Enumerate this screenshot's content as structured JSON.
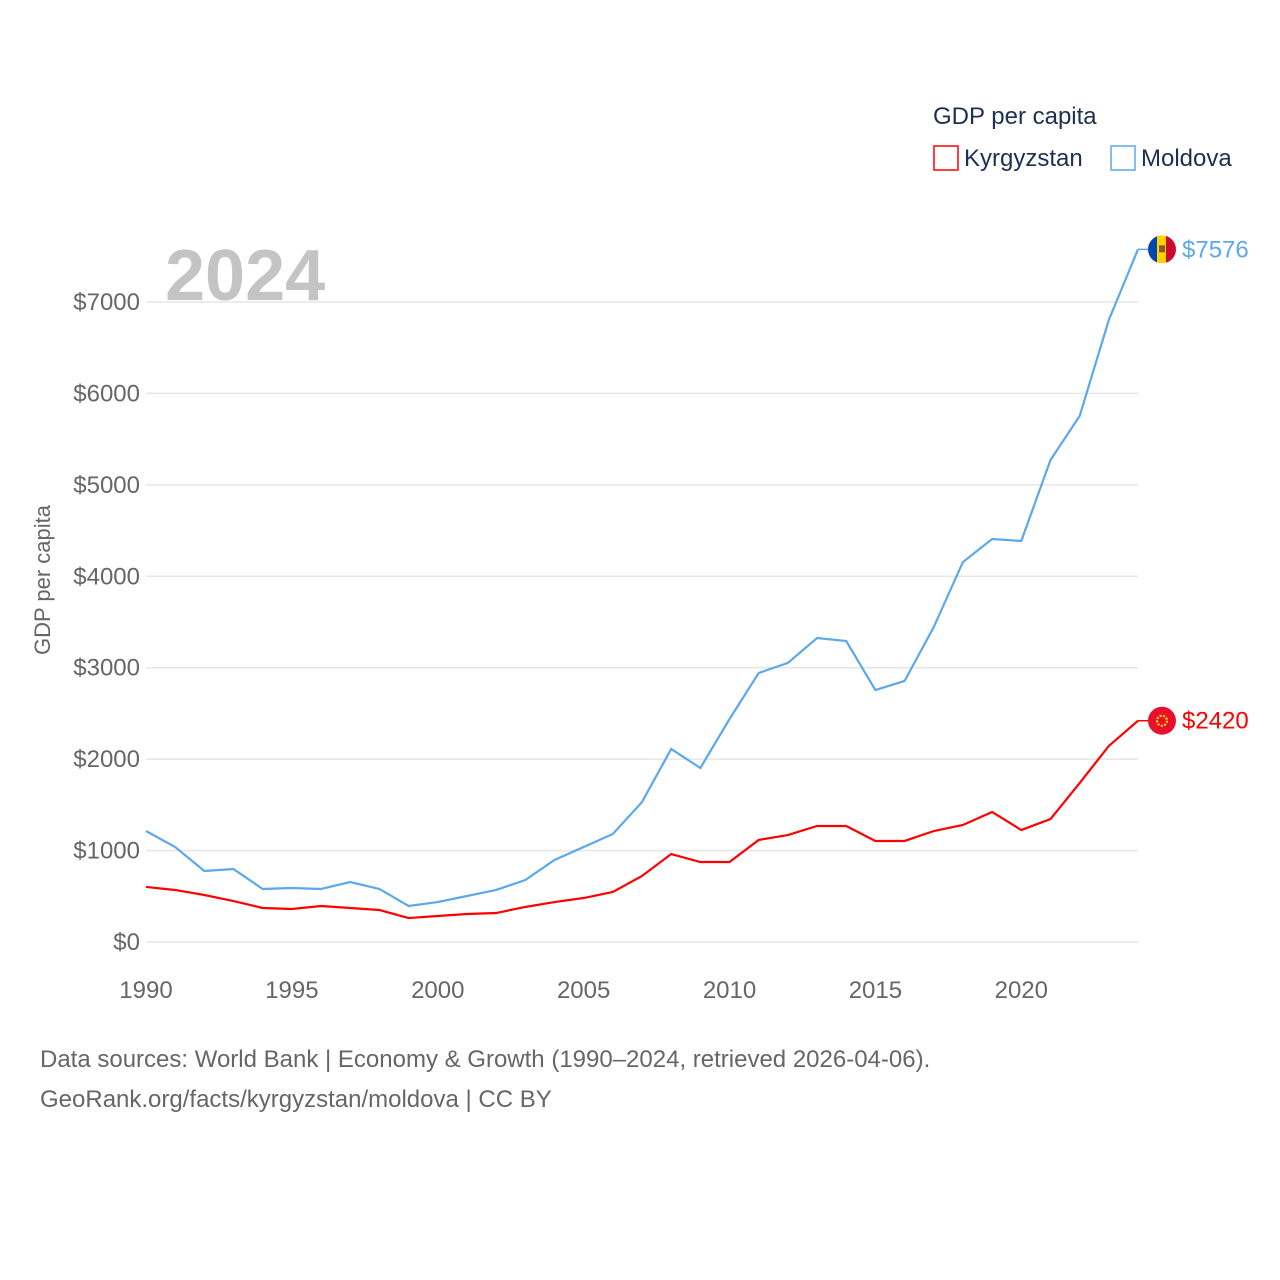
{
  "chart_data": {
    "type": "line",
    "title": "GDP per capita",
    "year_label": "2024",
    "ylabel": "GDP per capita",
    "xlabel": "",
    "xlim": [
      1990,
      2024
    ],
    "ylim": [
      0,
      7600
    ],
    "x_ticks": [
      1990,
      1995,
      2000,
      2005,
      2010,
      2015,
      2020
    ],
    "y_ticks": [
      0,
      1000,
      2000,
      3000,
      4000,
      5000,
      6000,
      7000
    ],
    "y_tick_labels": [
      "$0",
      "$1000",
      "$2000",
      "$3000",
      "$4000",
      "$5000",
      "$6000",
      "$7000"
    ],
    "grid": true,
    "legend_position": "top-right",
    "x": [
      1990,
      1991,
      1992,
      1993,
      1994,
      1995,
      1996,
      1997,
      1998,
      1999,
      2000,
      2001,
      2002,
      2003,
      2004,
      2005,
      2006,
      2007,
      2008,
      2009,
      2010,
      2011,
      2012,
      2013,
      2014,
      2015,
      2016,
      2017,
      2018,
      2019,
      2020,
      2021,
      2022,
      2023,
      2024
    ],
    "series": [
      {
        "name": "Kyrgyzstan",
        "color": "#ff0000",
        "end_label": "$2420",
        "values": [
          602,
          569,
          514,
          448,
          372,
          361,
          394,
          372,
          350,
          262,
          284,
          306,
          317,
          383,
          437,
          481,
          547,
          722,
          962,
          875,
          875,
          1116,
          1170,
          1269,
          1269,
          1105,
          1105,
          1214,
          1280,
          1422,
          1225,
          1345,
          1739,
          2144,
          2420
        ]
      },
      {
        "name": "Moldova",
        "color": "#5ba8ea",
        "end_label": "$7576",
        "values": [
          1214,
          1039,
          777,
          798,
          580,
          591,
          580,
          656,
          580,
          394,
          437,
          503,
          569,
          678,
          897,
          1039,
          1181,
          1531,
          2111,
          1903,
          2439,
          2942,
          3052,
          3325,
          3292,
          2756,
          2855,
          3445,
          4156,
          4408,
          4386,
          5272,
          5753,
          6803,
          7576
        ]
      }
    ]
  },
  "footer": {
    "line1": "Data sources: World Bank | Economy & Growth (1990–2024, retrieved 2026-04-06).",
    "line2": "GeoRank.org/facts/kyrgyzstan/moldova | CC BY"
  }
}
